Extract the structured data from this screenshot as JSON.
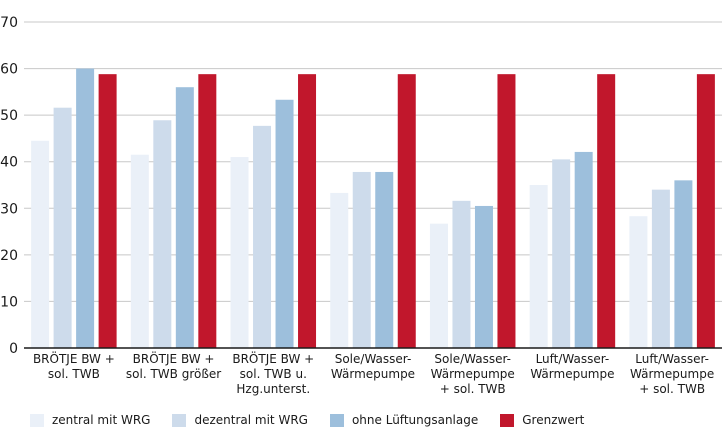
{
  "chart_data": {
    "type": "bar",
    "categories": [
      [
        "BRÖTJE BW +",
        "sol. TWB"
      ],
      [
        "BRÖTJE BW +",
        "sol. TWB größer"
      ],
      [
        "BRÖTJE BW +",
        "sol. TWB u.",
        "Hzg.unterst."
      ],
      [
        "Sole/Wasser-",
        "Wärmepumpe"
      ],
      [
        "Sole/Wasser-",
        "Wärmepumpe",
        "+ sol. TWB"
      ],
      [
        "Luft/Wasser-",
        "Wärmepumpe"
      ],
      [
        "Luft/Wasser-",
        "Wärmepumpe",
        "+ sol. TWB"
      ]
    ],
    "series": [
      {
        "name": "zentral mit WRG",
        "color": "#eaf0f8",
        "values": [
          44.5,
          41.5,
          41,
          33.3,
          26.7,
          35,
          28.3
        ]
      },
      {
        "name": "dezentral mit WRG",
        "color": "#cddbeb",
        "values": [
          51.6,
          48.9,
          47.7,
          37.8,
          31.6,
          40.5,
          34
        ]
      },
      {
        "name": "ohne Lüftungsanlage",
        "color": "#9dbfdc",
        "values": [
          60,
          56,
          53.3,
          37.8,
          30.5,
          42.1,
          36
        ]
      },
      {
        "name": "Grenzwert",
        "color": "#c1172c",
        "values": [
          58.8,
          58.8,
          58.8,
          58.8,
          58.8,
          58.8,
          58.8
        ]
      }
    ],
    "ylim": [
      0,
      70
    ],
    "yticks": [
      0,
      10,
      20,
      30,
      40,
      50,
      60,
      70
    ],
    "grid": true,
    "legend_position": "bottom"
  }
}
